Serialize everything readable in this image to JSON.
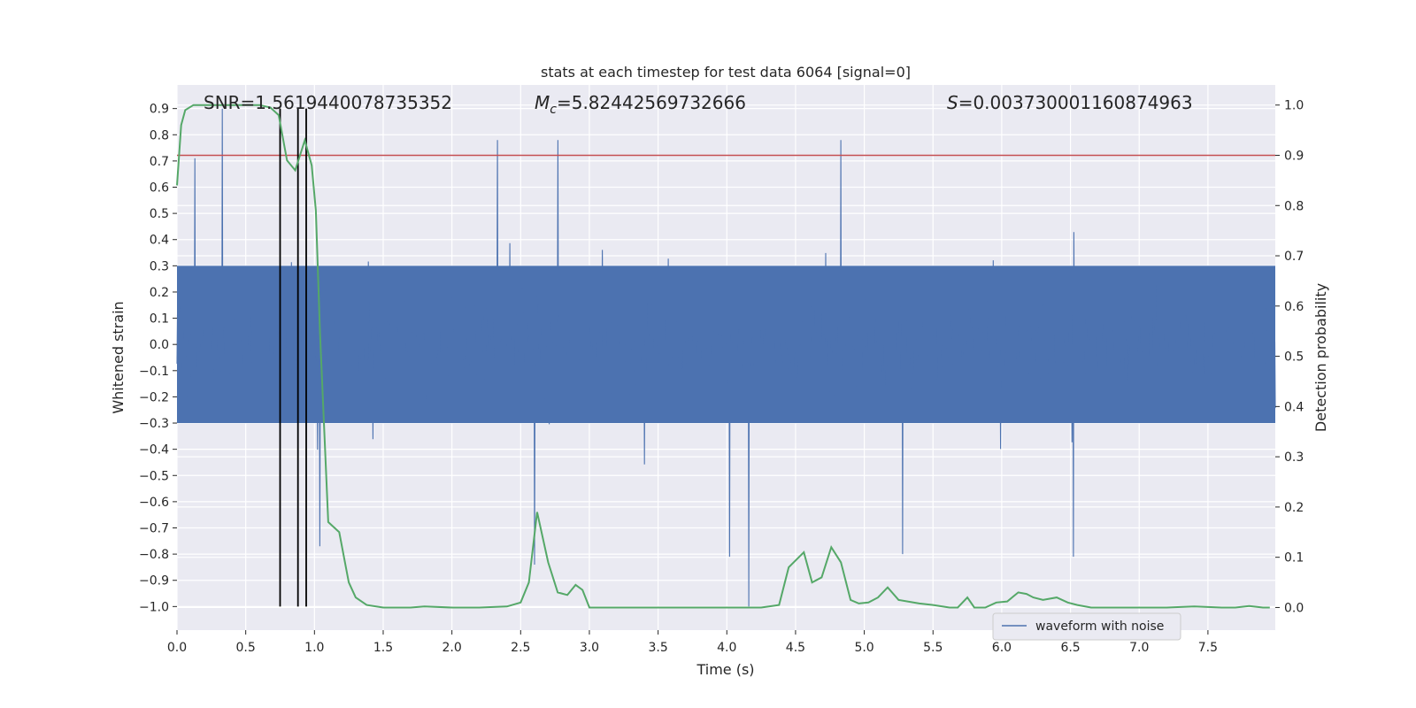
{
  "chart_data": {
    "type": "line",
    "title": "stats at each timestep for test data 6064 [signal=0]",
    "xlabel": "Time (s)",
    "ylabel": "Whitened strain",
    "y2label": "Detection probability",
    "xlim": [
      0.0,
      7.99
    ],
    "ylim": [
      -1.09,
      0.99
    ],
    "y2lim": [
      -0.045,
      1.04
    ],
    "grid": true,
    "xticks": [
      "0.0",
      "0.5",
      "1.0",
      "1.5",
      "2.0",
      "2.5",
      "3.0",
      "3.5",
      "4.0",
      "4.5",
      "5.0",
      "5.5",
      "6.0",
      "6.5",
      "7.0",
      "7.5"
    ],
    "yticks": [
      "0.9",
      "0.8",
      "0.7",
      "0.6",
      "0.5",
      "0.4",
      "0.3",
      "0.2",
      "0.1",
      "0.0",
      "−0.1",
      "−0.2",
      "−0.3",
      "−0.4",
      "−0.5",
      "−0.6",
      "−0.7",
      "−0.8",
      "−0.9",
      "−1.0"
    ],
    "y2ticks": [
      "1.0",
      "0.9",
      "0.8",
      "0.7",
      "0.6",
      "0.5",
      "0.4",
      "0.3",
      "0.2",
      "0.1",
      "0.0"
    ],
    "annotations": {
      "snr": "SNR=1.5619440078735352",
      "mc_symbol": "M",
      "mc_sub": "c",
      "mc_value": "=5.82442569732666",
      "s_symbol": "S",
      "s_value": "=0.003730001160874963"
    },
    "legend": {
      "label": "waveform with noise",
      "position": "lower-right"
    },
    "threshold": {
      "value": 0.9,
      "axis": "y2",
      "color": "#c44e52"
    },
    "vertical_markers": {
      "x": [
        0.75,
        0.88,
        0.94
      ],
      "ymin": -1.0,
      "ymax": 0.9,
      "color": "#000000"
    },
    "series": [
      {
        "name": "waveform with noise",
        "axis": "y",
        "color": "#4c72b0",
        "style": "dense-noise",
        "sample_peaks": [
          {
            "x": 0.33,
            "y": 0.9
          },
          {
            "x": 0.13,
            "y": 0.71
          },
          {
            "x": 2.33,
            "y": 0.78
          },
          {
            "x": 2.77,
            "y": 0.78
          },
          {
            "x": 4.83,
            "y": 0.78
          },
          {
            "x": 1.04,
            "y": -0.77
          },
          {
            "x": 2.6,
            "y": -0.84
          },
          {
            "x": 4.02,
            "y": -0.81
          },
          {
            "x": 4.16,
            "y": -1.0
          },
          {
            "x": 5.28,
            "y": -0.8
          },
          {
            "x": 6.52,
            "y": -0.81
          }
        ]
      },
      {
        "name": "Detection probability",
        "axis": "y2",
        "color": "#55a868",
        "x": [
          0.0,
          0.03,
          0.06,
          0.12,
          0.2,
          0.3,
          0.45,
          0.6,
          0.68,
          0.74,
          0.8,
          0.86,
          0.93,
          0.98,
          1.01,
          1.04,
          1.1,
          1.18,
          1.25,
          1.3,
          1.38,
          1.5,
          1.7,
          1.8,
          2.0,
          2.2,
          2.4,
          2.5,
          2.56,
          2.62,
          2.7,
          2.77,
          2.84,
          2.9,
          2.95,
          3.0,
          3.1,
          3.3,
          3.5,
          3.7,
          3.9,
          4.1,
          4.25,
          4.38,
          4.45,
          4.56,
          4.62,
          4.69,
          4.76,
          4.83,
          4.9,
          4.96,
          5.03,
          5.1,
          5.17,
          5.25,
          5.4,
          5.5,
          5.62,
          5.68,
          5.75,
          5.8,
          5.88,
          5.96,
          6.04,
          6.12,
          6.18,
          6.23,
          6.3,
          6.4,
          6.48,
          6.55,
          6.65,
          6.8,
          7.0,
          7.2,
          7.4,
          7.6,
          7.7,
          7.8,
          7.9,
          7.95
        ],
        "values": [
          0.84,
          0.96,
          0.99,
          1.0,
          1.0,
          1.0,
          1.0,
          1.0,
          0.995,
          0.98,
          0.89,
          0.87,
          0.93,
          0.88,
          0.79,
          0.55,
          0.17,
          0.15,
          0.05,
          0.02,
          0.005,
          0.0,
          0.0,
          0.002,
          0.0,
          0.0,
          0.002,
          0.01,
          0.05,
          0.19,
          0.09,
          0.03,
          0.025,
          0.045,
          0.035,
          0.0,
          0.0,
          0.0,
          0.0,
          0.0,
          0.0,
          0.0,
          0.0,
          0.005,
          0.08,
          0.11,
          0.05,
          0.06,
          0.12,
          0.09,
          0.015,
          0.008,
          0.01,
          0.02,
          0.04,
          0.015,
          0.008,
          0.005,
          0.0,
          0.0,
          0.02,
          0.0,
          0.0,
          0.01,
          0.012,
          0.03,
          0.027,
          0.02,
          0.015,
          0.02,
          0.01,
          0.005,
          0.0,
          0.0,
          0.0,
          0.0,
          0.002,
          0.0,
          0.0,
          0.003,
          0.0,
          0.0
        ]
      }
    ]
  }
}
